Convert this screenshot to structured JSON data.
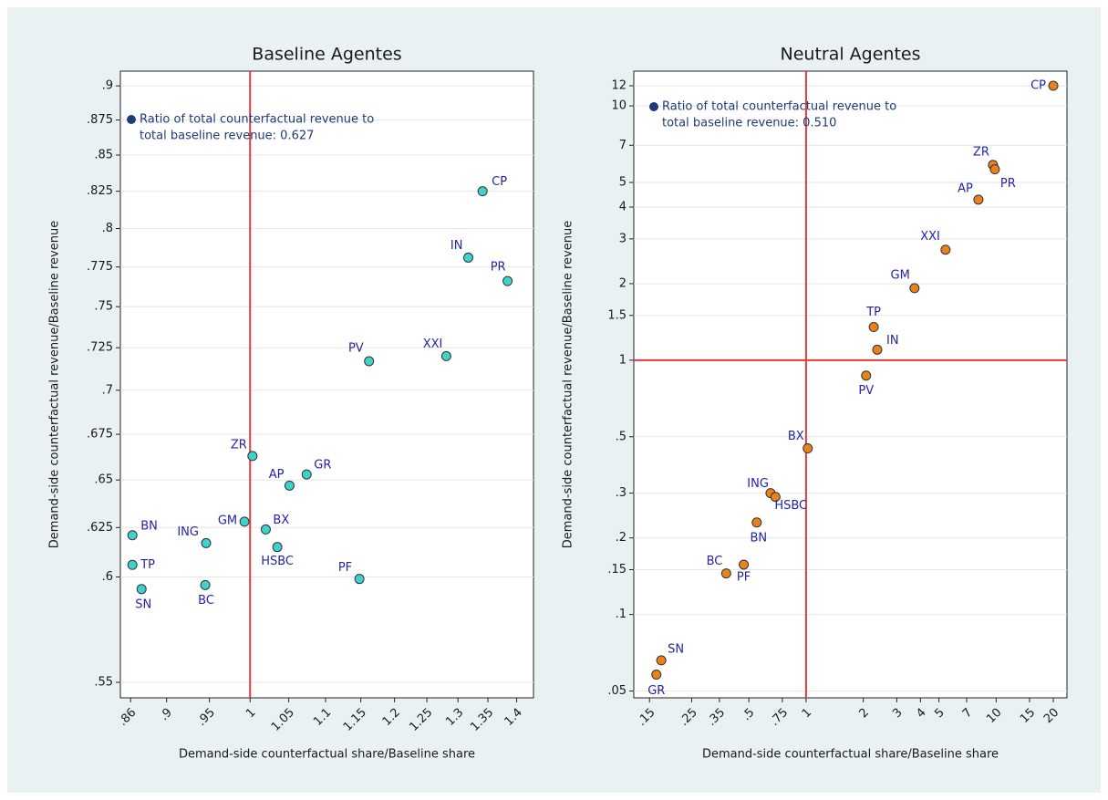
{
  "chart_data": [
    {
      "type": "scatter",
      "title": "Baseline Agentes",
      "xlabel": "Demand-side counterfactual share/Baseline share",
      "ylabel": "Demand-side counterfactual revenue/Baseline revenue",
      "labels": [
        "CP",
        "IN",
        "PR",
        "XXI",
        "PV",
        "ZR",
        "AP",
        "GR",
        "GM",
        "BX",
        "HSBC",
        "ING",
        "BN",
        "TP",
        "SN",
        "BC",
        "PF"
      ],
      "x": [
        1.341,
        1.317,
        1.384,
        1.281,
        1.162,
        1.003,
        1.051,
        1.074,
        0.993,
        1.02,
        1.035,
        0.946,
        0.862,
        0.862,
        0.872,
        0.945,
        1.148
      ],
      "y": [
        0.825,
        0.781,
        0.766,
        0.72,
        0.717,
        0.663,
        0.647,
        0.653,
        0.628,
        0.624,
        0.615,
        0.617,
        0.621,
        0.606,
        0.594,
        0.596,
        0.599
      ],
      "color": "#3fd1cc",
      "annotation": [
        "Ratio of total counterfactual revenue to",
        "total baseline revenue: 0.627"
      ],
      "annotation_color": "#1f3a7a",
      "xlog": true,
      "ylog": true,
      "xlim": [
        0.849,
        1.43
      ],
      "ylim": [
        0.543,
        0.911
      ],
      "xticks": [
        {
          "value": 0.86,
          "label": ".86"
        },
        {
          "value": 0.9,
          "label": ".9"
        },
        {
          "value": 0.95,
          "label": ".95"
        },
        1,
        1.05,
        1.1,
        1.15,
        1.2,
        1.25,
        1.3,
        1.35,
        1.4
      ],
      "yticks": [
        {
          "value": 0.55,
          "label": ".55"
        },
        {
          "value": 0.6,
          "label": ".6"
        },
        {
          "value": 0.625,
          "label": ".625"
        },
        {
          "value": 0.65,
          "label": ".65"
        },
        {
          "value": 0.675,
          "label": ".675"
        },
        {
          "value": 0.7,
          "label": ".7"
        },
        {
          "value": 0.725,
          "label": ".725"
        },
        {
          "value": 0.75,
          "label": ".75"
        },
        {
          "value": 0.775,
          "label": ".775"
        },
        {
          "value": 0.8,
          "label": ".8"
        },
        {
          "value": 0.825,
          "label": ".825"
        },
        {
          "value": 0.85,
          "label": ".85"
        },
        {
          "value": 0.875,
          "label": ".875"
        },
        {
          "value": 0.9,
          "label": ".9"
        }
      ],
      "xline": [
        1
      ],
      "yline": [],
      "line_color": "#e03c3c",
      "grid": true
    },
    {
      "type": "scatter",
      "title": "Neutral Agentes",
      "xlabel": "Demand-side counterfactual share/Baseline share",
      "ylabel": "Demand-side counterfactual revenue/Baseline revenue",
      "labels": [
        "CP",
        "ZR",
        "PR",
        "AP",
        "XXI",
        "GM",
        "TP",
        "IN",
        "PV",
        "BX",
        "ING",
        "HSBC",
        "BN",
        "BC",
        "PF",
        "SN",
        "GR"
      ],
      "x": [
        20,
        9.63,
        9.85,
        8.07,
        5.42,
        3.72,
        2.27,
        2.37,
        2.07,
        1.02,
        0.65,
        0.69,
        0.55,
        0.38,
        0.47,
        0.173,
        0.163
      ],
      "y": [
        12,
        5.86,
        5.63,
        4.28,
        2.72,
        1.92,
        1.35,
        1.1,
        0.87,
        0.45,
        0.3,
        0.29,
        0.23,
        0.145,
        0.157,
        0.066,
        0.058
      ],
      "color": "#e8821e",
      "annotation": [
        "Ratio of total counterfactual revenue to",
        "total baseline revenue: 0.510"
      ],
      "annotation_color": "#1f3a7a",
      "xlog": true,
      "ylog": true,
      "xlim": [
        0.124,
        23.6
      ],
      "ylim": [
        0.047,
        13.7
      ],
      "xticks": [
        {
          "value": 0.15,
          "label": ".15"
        },
        {
          "value": 0.25,
          "label": ".25"
        },
        {
          "value": 0.35,
          "label": ".35"
        },
        {
          "value": 0.5,
          "label": ".5"
        },
        {
          "value": 0.75,
          "label": ".75"
        },
        1,
        2,
        3,
        4,
        5,
        7,
        10,
        15,
        20
      ],
      "yticks": [
        {
          "value": 0.05,
          "label": ".05"
        },
        {
          "value": 0.1,
          "label": ".1"
        },
        {
          "value": 0.15,
          "label": ".15"
        },
        {
          "value": 0.2,
          "label": ".2"
        },
        {
          "value": 0.3,
          "label": ".3"
        },
        {
          "value": 0.5,
          "label": ".5"
        },
        1,
        1.5,
        2,
        3,
        4,
        5,
        7,
        10,
        12
      ],
      "xline": [
        1
      ],
      "yline": [
        1
      ],
      "line_color": "#e03c3c",
      "grid": true
    }
  ]
}
